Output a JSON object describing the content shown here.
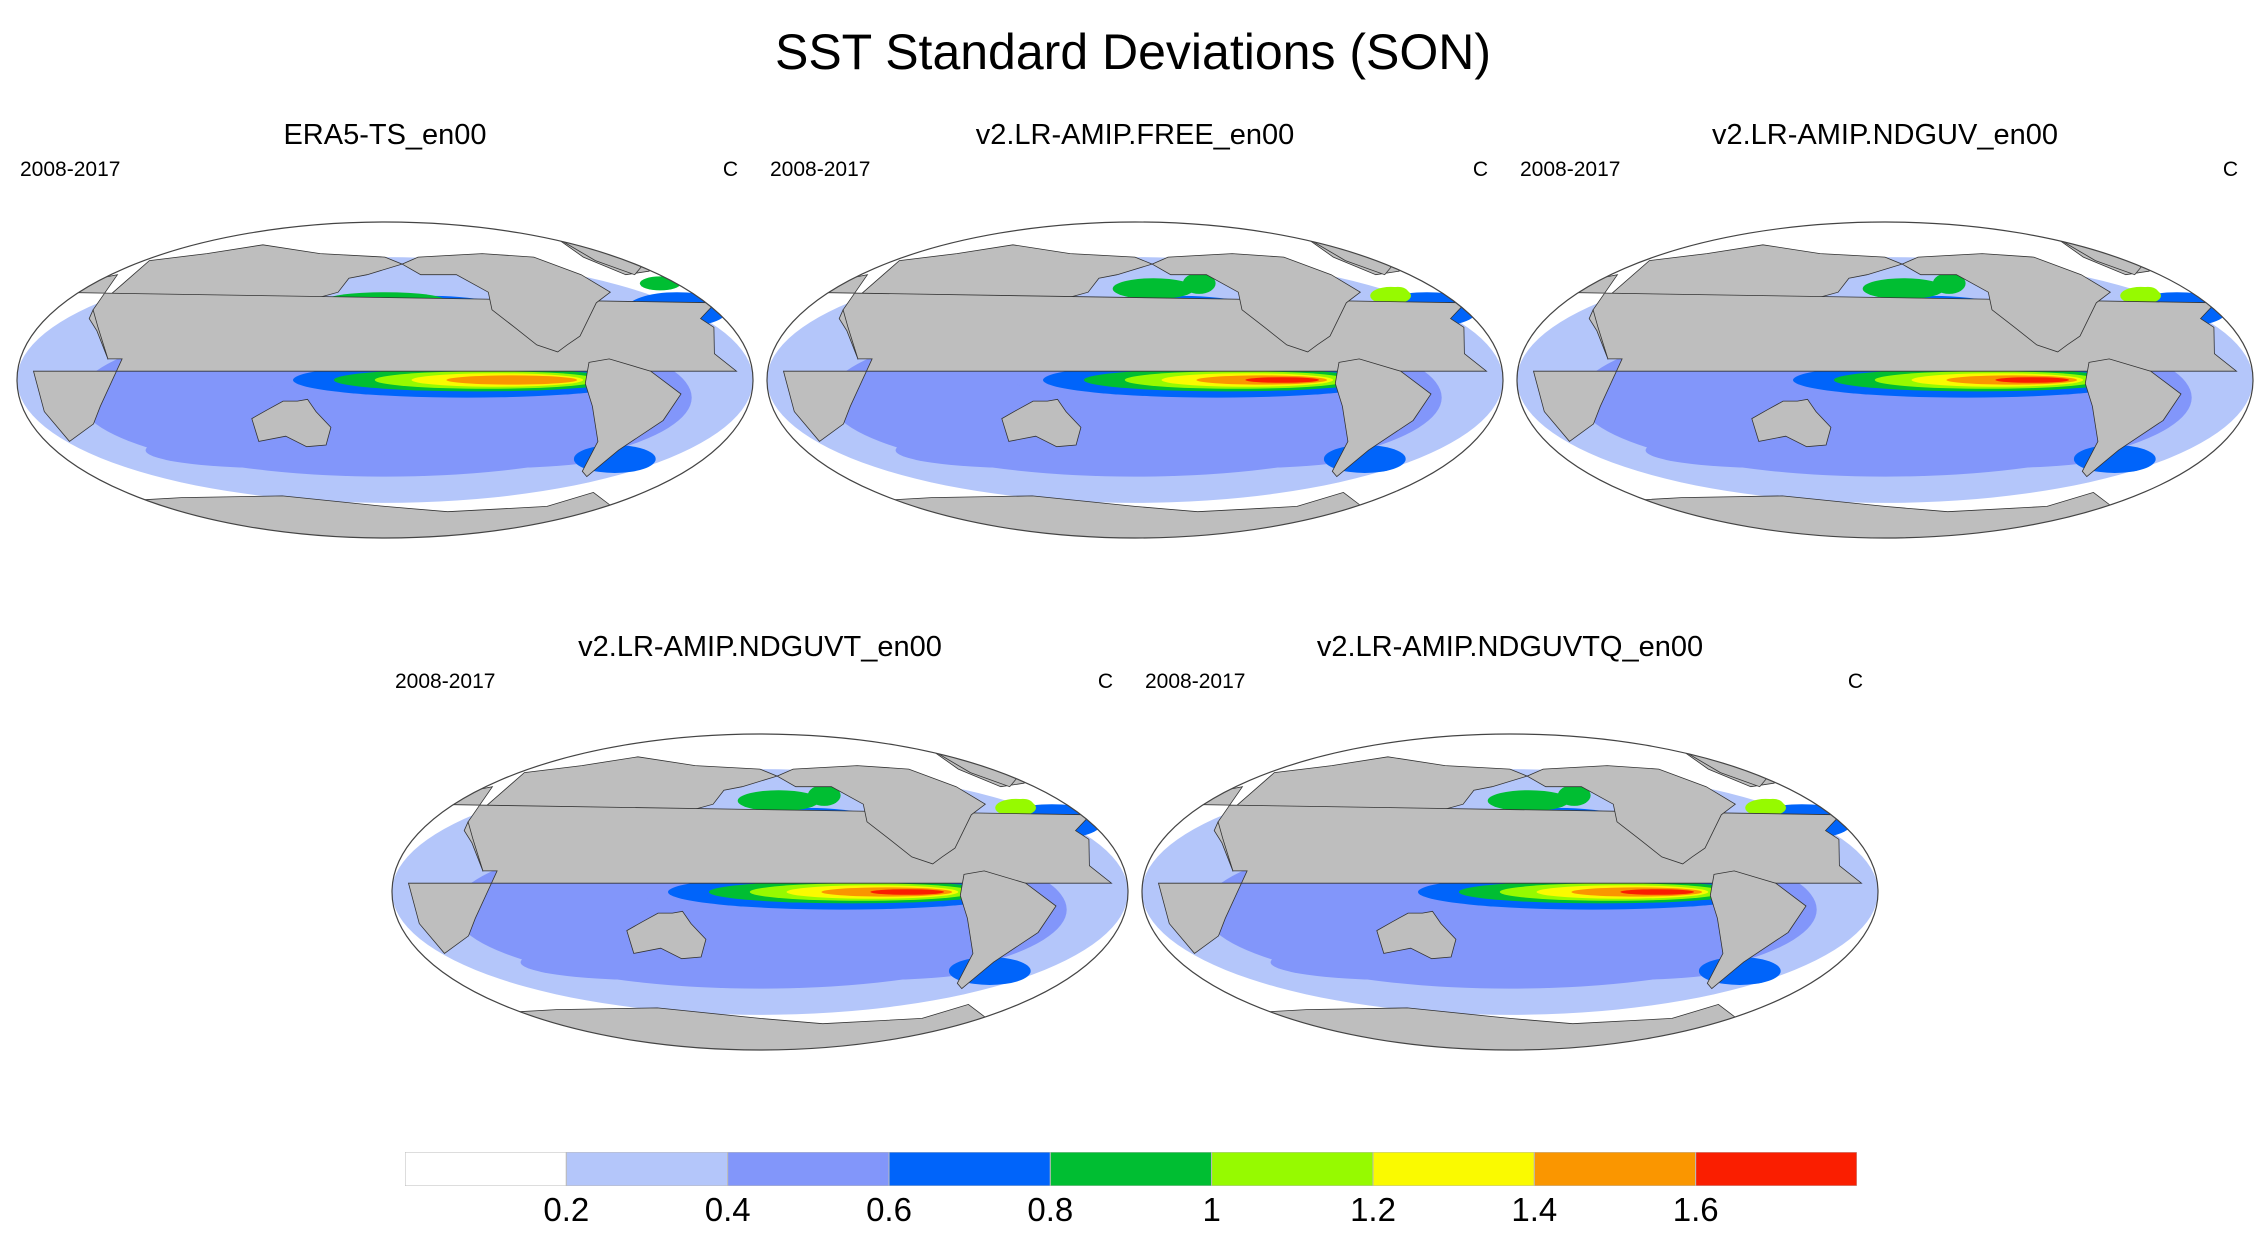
{
  "title": "SST Standard Deviations (SON)",
  "panels": [
    {
      "title": "ERA5-TS_en00",
      "period": "2008-2017",
      "units": "C",
      "variant": 0
    },
    {
      "title": "v2.LR-AMIP.FREE_en00",
      "period": "2008-2017",
      "units": "C",
      "variant": 1
    },
    {
      "title": "v2.LR-AMIP.NDGUV_en00",
      "period": "2008-2017",
      "units": "C",
      "variant": 2
    },
    {
      "title": "v2.LR-AMIP.NDGUVT_en00",
      "period": "2008-2017",
      "units": "C",
      "variant": 3
    },
    {
      "title": "v2.LR-AMIP.NDGUVTQ_en00",
      "period": "2008-2017",
      "units": "C",
      "variant": 4
    }
  ],
  "colorbar": {
    "labels": [
      "0.2",
      "0.4",
      "0.6",
      "0.8",
      "1",
      "1.2",
      "1.4",
      "1.6"
    ],
    "colors": [
      "#ffffff",
      "#b4c6fa",
      "#8296fa",
      "#0064fa",
      "#00be32",
      "#96fa00",
      "#fafa00",
      "#fa9600",
      "#fa1e00"
    ]
  },
  "land_color": "#bebebe",
  "projection": "Robinson, centered on 180°"
}
